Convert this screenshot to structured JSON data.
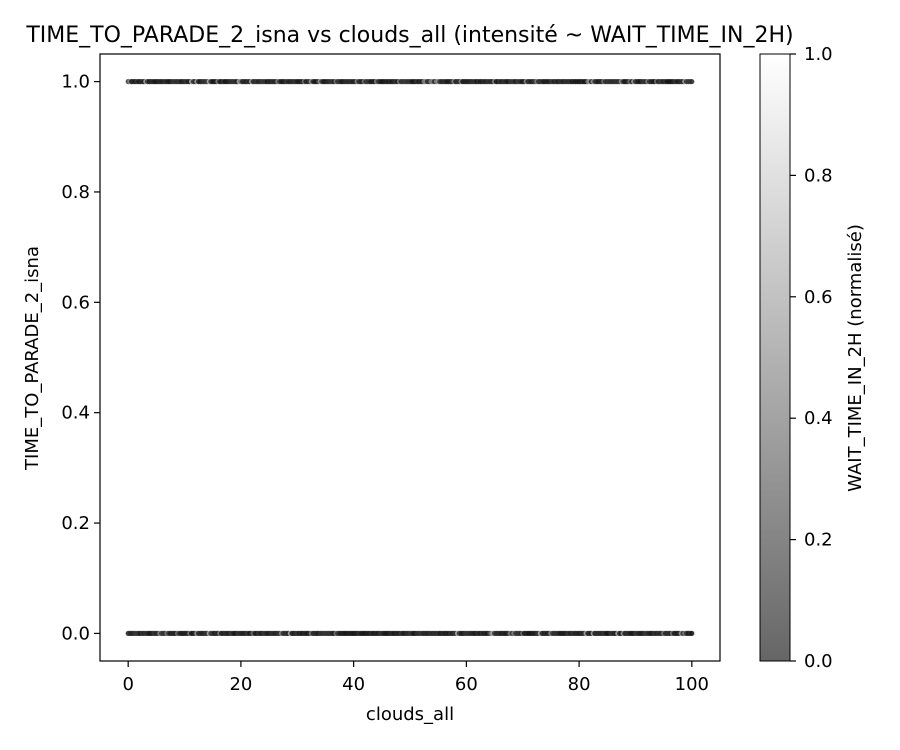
{
  "chart_data": {
    "type": "scatter",
    "title": "TIME_TO_PARADE_2_isna vs clouds_all (intensité ~ WAIT_TIME_IN_2H)",
    "xlabel": "clouds_all",
    "ylabel": "TIME_TO_PARADE_2_isna",
    "xlim": [
      -5,
      105
    ],
    "ylim": [
      -0.05,
      1.05
    ],
    "xticks": [
      0,
      20,
      40,
      60,
      80,
      100
    ],
    "xtick_labels": [
      "0",
      "20",
      "40",
      "60",
      "80",
      "100"
    ],
    "yticks": [
      0.0,
      0.2,
      0.4,
      0.6,
      0.8,
      1.0
    ],
    "ytick_labels": [
      "0.0",
      "0.2",
      "0.4",
      "0.6",
      "0.8",
      "1.0"
    ],
    "grid": false,
    "series": [
      {
        "x_range": [
          0,
          100
        ],
        "y": 1,
        "points": [
          {
            "x": 0,
            "y": 1
          },
          {
            "x": 10,
            "y": 1
          },
          {
            "x": 20,
            "y": 1
          },
          {
            "x": 30,
            "y": 1
          },
          {
            "x": 40,
            "y": 1
          },
          {
            "x": 50,
            "y": 1
          },
          {
            "x": 60,
            "y": 1
          },
          {
            "x": 70,
            "y": 1
          },
          {
            "x": 80,
            "y": 1
          },
          {
            "x": 90,
            "y": 1
          },
          {
            "x": 100,
            "y": 1
          }
        ]
      },
      {
        "x_range": [
          0,
          100
        ],
        "y": 0,
        "points": [
          {
            "x": 0,
            "y": 0
          },
          {
            "x": 10,
            "y": 0
          },
          {
            "x": 20,
            "y": 0
          },
          {
            "x": 30,
            "y": 0
          },
          {
            "x": 40,
            "y": 0
          },
          {
            "x": 50,
            "y": 0
          },
          {
            "x": 60,
            "y": 0
          },
          {
            "x": 70,
            "y": 0
          },
          {
            "x": 80,
            "y": 0
          },
          {
            "x": 90,
            "y": 0
          },
          {
            "x": 100,
            "y": 0
          }
        ]
      }
    ],
    "colorbar": {
      "label": "WAIT_TIME_IN_2H (normalisé)",
      "range": [
        0.0,
        1.0
      ],
      "ticks": [
        0.0,
        0.2,
        0.4,
        0.6,
        0.8,
        1.0
      ],
      "tick_labels": [
        "0.0",
        "0.2",
        "0.4",
        "0.6",
        "0.8",
        "1.0"
      ],
      "colormap": "gray",
      "color_low": "#666666",
      "color_high": "#ffffff"
    },
    "colors": {
      "point_dark": "#1a1a1a",
      "point_light": "#d8d8d8",
      "axis": "#000000"
    }
  }
}
